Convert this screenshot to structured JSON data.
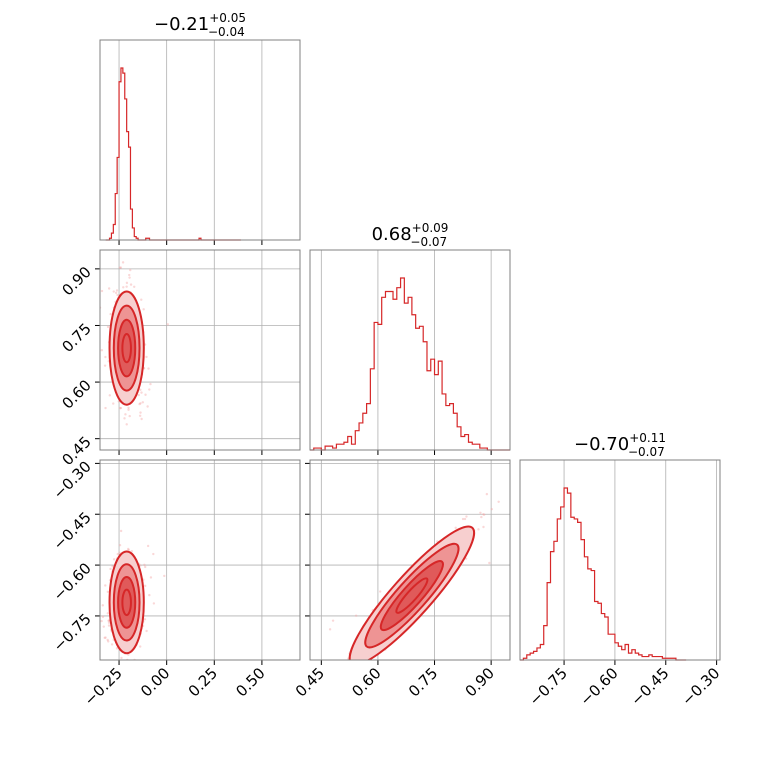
{
  "chart_data": {
    "type": "corner",
    "panel_titles": [
      {
        "value": "−0.21",
        "plus": "+0.05",
        "minus": "−0.04"
      },
      {
        "value": "0.68",
        "plus": "+0.09",
        "minus": "−0.07"
      },
      {
        "value": "−0.70",
        "plus": "+0.11",
        "minus": "−0.07"
      }
    ],
    "params": [
      {
        "range": [
          -0.35,
          0.7
        ],
        "ticks": [
          -0.25,
          0.0,
          0.25,
          0.5
        ],
        "tick_labels": [
          "−0.25",
          "0.00",
          "0.25",
          "0.50"
        ]
      },
      {
        "range": [
          0.42,
          0.95
        ],
        "ticks": [
          0.45,
          0.6,
          0.75,
          0.9
        ],
        "tick_labels": [
          "0.45",
          "0.60",
          "0.75",
          "0.90"
        ]
      },
      {
        "range": [
          -0.88,
          -0.29
        ],
        "ticks": [
          -0.75,
          -0.6,
          -0.45,
          -0.3
        ],
        "tick_labels": [
          "−0.75",
          "−0.60",
          "−0.45",
          "−0.30"
        ]
      }
    ],
    "grid": true,
    "color": "#d62728",
    "histograms": [
      {
        "param": 0,
        "bin_width": 0.01,
        "x_start": -0.32,
        "counts": [
          0,
          0,
          1,
          4,
          9,
          27,
          48,
          92,
          100,
          97,
          82,
          63,
          54,
          18,
          7,
          2,
          1,
          0,
          0,
          0,
          0,
          1,
          1,
          0,
          0,
          0,
          0,
          0,
          0,
          0,
          0,
          0,
          0,
          0,
          0,
          0,
          0,
          0,
          0,
          0,
          0,
          0,
          0,
          0,
          0,
          0,
          0,
          0,
          0,
          1,
          0,
          0,
          0,
          0,
          0,
          0,
          0,
          0,
          0,
          0,
          0,
          0,
          0,
          0,
          0,
          0,
          0,
          0,
          0,
          0,
          0
        ]
      },
      {
        "param": 1,
        "bin_width": 0.01,
        "x_start": 0.42,
        "counts": [
          0,
          1,
          1,
          0,
          2,
          2,
          1,
          3,
          3,
          4,
          7,
          3,
          10,
          14,
          19,
          24,
          42,
          66,
          65,
          79,
          82,
          82,
          78,
          84,
          89,
          76,
          79,
          70,
          63,
          64,
          56,
          41,
          47,
          39,
          46,
          29,
          23,
          24,
          19,
          12,
          7,
          8,
          4,
          3,
          3,
          1,
          1,
          0,
          0,
          0,
          0,
          0,
          0
        ]
      },
      {
        "param": 2,
        "bin_width": 0.01,
        "x_start": -0.88,
        "counts": [
          0,
          1,
          3,
          4,
          5,
          7,
          9,
          20,
          45,
          63,
          69,
          82,
          89,
          100,
          97,
          83,
          82,
          80,
          70,
          60,
          53,
          52,
          34,
          33,
          27,
          25,
          15,
          15,
          10,
          8,
          6,
          9,
          4,
          6,
          4,
          3,
          2,
          2,
          3,
          2,
          2,
          2,
          1,
          1,
          1,
          1,
          0,
          0,
          0
        ]
      }
    ],
    "pairs": [
      {
        "x_param": 0,
        "y_param": 1,
        "center": [
          -0.21,
          0.69
        ],
        "sx": 0.045,
        "sy": 0.075,
        "rho": -0.2
      },
      {
        "x_param": 0,
        "y_param": 2,
        "center": [
          -0.21,
          -0.71
        ],
        "sx": 0.045,
        "sy": 0.075,
        "rho": 0.1
      },
      {
        "x_param": 1,
        "y_param": 2,
        "center": [
          0.69,
          -0.69
        ],
        "sx": 0.08,
        "sy": 0.1,
        "rho": 0.97
      }
    ]
  }
}
